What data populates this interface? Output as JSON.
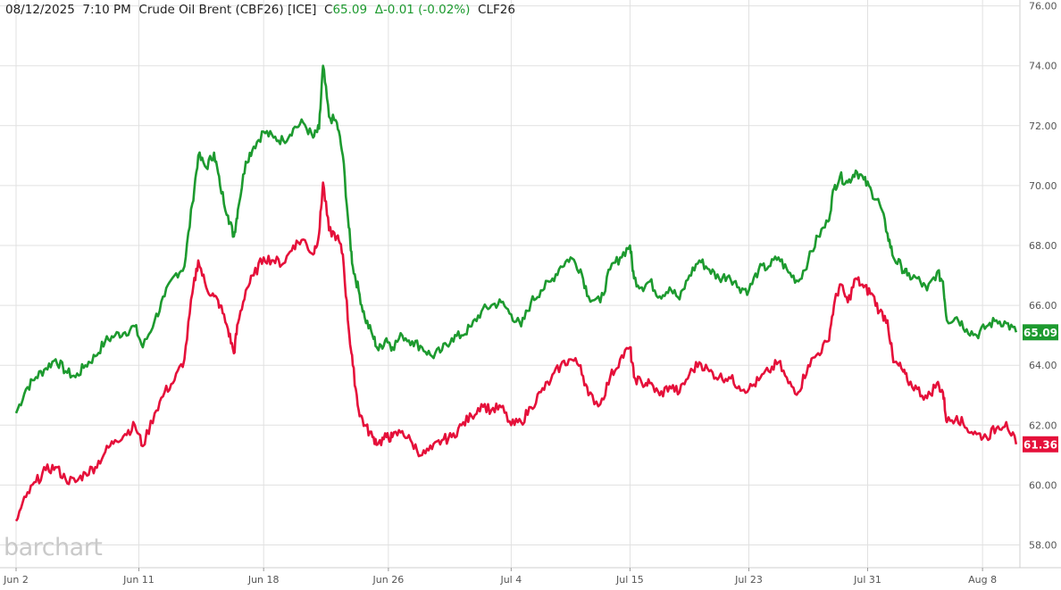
{
  "header": {
    "date": "08/12/2025",
    "time": "7:10 PM",
    "instrument": "Crude Oil Brent (CBF26) [ICE]",
    "close_label": "C",
    "close_value": "65.09",
    "change": "Δ-0.01 (-0.02%)",
    "second_symbol": "CLF26"
  },
  "logo_text": "barchart",
  "colors": {
    "series_a": "#1d9a2f",
    "series_b": "#e5103a",
    "grid": "#e1e1e1"
  },
  "chart_data": {
    "type": "line",
    "grid": true,
    "ylim": [
      57.5,
      76.2
    ],
    "xlim": [
      0,
      51.5
    ],
    "y_ticks": [
      "76.00",
      "74.00",
      "72.00",
      "70.00",
      "68.00",
      "66.00",
      "64.00",
      "62.00",
      "60.00",
      "58.00"
    ],
    "x_ticks": [
      {
        "label": "Jun 2",
        "x": 0
      },
      {
        "label": "Jun 11",
        "x": 6.2
      },
      {
        "label": "Jun 18",
        "x": 12.5
      },
      {
        "label": "Jun 26",
        "x": 18.8
      },
      {
        "label": "Jul 4",
        "x": 25
      },
      {
        "label": "Jul 15",
        "x": 31
      },
      {
        "label": "Jul 23",
        "x": 37
      },
      {
        "label": "Jul 31",
        "x": 43
      },
      {
        "label": "Aug 8",
        "x": 48.8
      }
    ],
    "series": [
      {
        "symbol": "CBF26",
        "last_label": "65.09",
        "points": [
          [
            0,
            62.4
          ],
          [
            0.5,
            63.2
          ],
          [
            1,
            63.6
          ],
          [
            1.5,
            63.9
          ],
          [
            2,
            64.2
          ],
          [
            2.5,
            63.8
          ],
          [
            3,
            63.6
          ],
          [
            3.5,
            64.0
          ],
          [
            4,
            64.3
          ],
          [
            4.5,
            64.8
          ],
          [
            5,
            65.0
          ],
          [
            5.5,
            65.1
          ],
          [
            6,
            65.3
          ],
          [
            6.4,
            64.6
          ],
          [
            7,
            65.5
          ],
          [
            7.5,
            66.3
          ],
          [
            8,
            67.0
          ],
          [
            8.5,
            67.3
          ],
          [
            8.9,
            69.4
          ],
          [
            9.2,
            71.0
          ],
          [
            9.6,
            70.6
          ],
          [
            10,
            71.1
          ],
          [
            10.3,
            70.0
          ],
          [
            10.7,
            69.0
          ],
          [
            11,
            68.3
          ],
          [
            11.2,
            69.2
          ],
          [
            11.6,
            70.8
          ],
          [
            12,
            71.3
          ],
          [
            12.5,
            71.8
          ],
          [
            13,
            71.6
          ],
          [
            13.5,
            71.5
          ],
          [
            14,
            71.9
          ],
          [
            14.5,
            72.1
          ],
          [
            15,
            71.6
          ],
          [
            15.3,
            71.9
          ],
          [
            15.5,
            74.0
          ],
          [
            15.8,
            72.3
          ],
          [
            16.2,
            72.1
          ],
          [
            16.5,
            71.0
          ],
          [
            16.8,
            68.6
          ],
          [
            17,
            67.3
          ],
          [
            17.3,
            66.5
          ],
          [
            17.6,
            65.6
          ],
          [
            18,
            65.0
          ],
          [
            18.3,
            64.5
          ],
          [
            18.7,
            64.9
          ],
          [
            19,
            64.6
          ],
          [
            19.5,
            65.0
          ],
          [
            20,
            64.8
          ],
          [
            20.5,
            64.6
          ],
          [
            21,
            64.3
          ],
          [
            21.5,
            64.5
          ],
          [
            22,
            64.9
          ],
          [
            22.5,
            65.0
          ],
          [
            23,
            65.3
          ],
          [
            23.5,
            65.8
          ],
          [
            24,
            66.0
          ],
          [
            24.5,
            66.1
          ],
          [
            25,
            65.7
          ],
          [
            25.5,
            65.3
          ],
          [
            26,
            66.1
          ],
          [
            26.5,
            66.5
          ],
          [
            27,
            66.8
          ],
          [
            27.5,
            67.3
          ],
          [
            28,
            67.6
          ],
          [
            28.5,
            67.2
          ],
          [
            28.9,
            66.3
          ],
          [
            29.5,
            66.1
          ],
          [
            30,
            67.2
          ],
          [
            30.5,
            67.6
          ],
          [
            31,
            68.0
          ],
          [
            31.2,
            66.9
          ],
          [
            31.6,
            66.6
          ],
          [
            32,
            66.8
          ],
          [
            32.5,
            66.3
          ],
          [
            33,
            66.6
          ],
          [
            33.5,
            66.2
          ],
          [
            34,
            67.0
          ],
          [
            34.5,
            67.5
          ],
          [
            35,
            67.2
          ],
          [
            35.5,
            66.9
          ],
          [
            36,
            67.0
          ],
          [
            36.5,
            66.6
          ],
          [
            37,
            66.5
          ],
          [
            37.5,
            67.2
          ],
          [
            38,
            67.3
          ],
          [
            38.5,
            67.6
          ],
          [
            39,
            67.1
          ],
          [
            39.5,
            66.8
          ],
          [
            40,
            67.5
          ],
          [
            40.5,
            68.3
          ],
          [
            41,
            68.8
          ],
          [
            41.3,
            69.9
          ],
          [
            41.6,
            70.3
          ],
          [
            42,
            70.1
          ],
          [
            42.4,
            70.5
          ],
          [
            42.8,
            70.2
          ],
          [
            43.2,
            69.8
          ],
          [
            43.6,
            69.4
          ],
          [
            44,
            68.4
          ],
          [
            44.3,
            67.6
          ],
          [
            44.7,
            67.3
          ],
          [
            45,
            67.0
          ],
          [
            45.5,
            66.9
          ],
          [
            46,
            66.5
          ],
          [
            46.5,
            67.1
          ],
          [
            46.8,
            66.8
          ],
          [
            47,
            65.5
          ],
          [
            47.5,
            65.6
          ],
          [
            48,
            65.2
          ],
          [
            48.5,
            65.0
          ],
          [
            49,
            65.3
          ],
          [
            49.5,
            65.5
          ],
          [
            50,
            65.4
          ],
          [
            50.5,
            65.1
          ]
        ]
      },
      {
        "symbol": "CLF26",
        "last_label": "61.36",
        "points": [
          [
            0,
            58.8
          ],
          [
            0.5,
            59.6
          ],
          [
            1,
            60.1
          ],
          [
            1.5,
            60.5
          ],
          [
            2,
            60.6
          ],
          [
            2.5,
            60.2
          ],
          [
            3,
            60.1
          ],
          [
            3.5,
            60.4
          ],
          [
            4,
            60.6
          ],
          [
            4.5,
            61.1
          ],
          [
            5,
            61.5
          ],
          [
            5.5,
            61.7
          ],
          [
            6,
            62.0
          ],
          [
            6.4,
            61.3
          ],
          [
            7,
            62.4
          ],
          [
            7.5,
            63.1
          ],
          [
            8,
            63.5
          ],
          [
            8.5,
            64.2
          ],
          [
            8.9,
            66.4
          ],
          [
            9.2,
            67.5
          ],
          [
            9.6,
            66.6
          ],
          [
            10,
            66.3
          ],
          [
            10.3,
            66.0
          ],
          [
            10.7,
            65.2
          ],
          [
            11,
            64.4
          ],
          [
            11.2,
            65.4
          ],
          [
            11.6,
            66.5
          ],
          [
            12,
            67.0
          ],
          [
            12.5,
            67.6
          ],
          [
            13,
            67.5
          ],
          [
            13.5,
            67.4
          ],
          [
            14,
            68.0
          ],
          [
            14.5,
            68.2
          ],
          [
            15,
            67.7
          ],
          [
            15.3,
            68.4
          ],
          [
            15.5,
            70.1
          ],
          [
            15.8,
            68.5
          ],
          [
            16.2,
            68.3
          ],
          [
            16.5,
            67.7
          ],
          [
            16.8,
            65.2
          ],
          [
            17,
            64.0
          ],
          [
            17.3,
            62.5
          ],
          [
            17.6,
            62.0
          ],
          [
            18,
            61.6
          ],
          [
            18.3,
            61.4
          ],
          [
            18.7,
            61.6
          ],
          [
            19,
            61.6
          ],
          [
            19.5,
            61.8
          ],
          [
            20,
            61.4
          ],
          [
            20.5,
            61.0
          ],
          [
            21,
            61.2
          ],
          [
            21.5,
            61.5
          ],
          [
            22,
            61.6
          ],
          [
            22.5,
            62.0
          ],
          [
            23,
            62.3
          ],
          [
            23.5,
            62.7
          ],
          [
            24,
            62.5
          ],
          [
            24.5,
            62.6
          ],
          [
            25,
            62.0
          ],
          [
            25.5,
            62.1
          ],
          [
            26,
            62.6
          ],
          [
            26.5,
            63.1
          ],
          [
            27,
            63.5
          ],
          [
            27.5,
            64.0
          ],
          [
            28,
            64.2
          ],
          [
            28.5,
            64.0
          ],
          [
            28.9,
            63.0
          ],
          [
            29.5,
            62.7
          ],
          [
            30,
            63.6
          ],
          [
            30.5,
            64.2
          ],
          [
            31,
            64.6
          ],
          [
            31.2,
            63.6
          ],
          [
            31.6,
            63.4
          ],
          [
            32,
            63.4
          ],
          [
            32.5,
            63.0
          ],
          [
            33,
            63.3
          ],
          [
            33.5,
            63.1
          ],
          [
            34,
            63.7
          ],
          [
            34.5,
            64.1
          ],
          [
            35,
            63.8
          ],
          [
            35.5,
            63.6
          ],
          [
            36,
            63.6
          ],
          [
            36.5,
            63.3
          ],
          [
            37,
            63.2
          ],
          [
            37.5,
            63.5
          ],
          [
            38,
            63.8
          ],
          [
            38.5,
            64.1
          ],
          [
            39,
            63.4
          ],
          [
            39.5,
            63.1
          ],
          [
            40,
            64.0
          ],
          [
            40.5,
            64.4
          ],
          [
            41,
            64.8
          ],
          [
            41.3,
            66.0
          ],
          [
            41.6,
            66.7
          ],
          [
            42,
            66.1
          ],
          [
            42.4,
            66.9
          ],
          [
            42.8,
            66.6
          ],
          [
            43.2,
            66.4
          ],
          [
            43.6,
            65.8
          ],
          [
            44,
            65.5
          ],
          [
            44.3,
            64.1
          ],
          [
            44.7,
            63.9
          ],
          [
            45,
            63.5
          ],
          [
            45.5,
            63.2
          ],
          [
            46,
            62.9
          ],
          [
            46.5,
            63.4
          ],
          [
            46.8,
            63.1
          ],
          [
            47,
            62.1
          ],
          [
            47.5,
            62.3
          ],
          [
            48,
            61.9
          ],
          [
            48.5,
            61.7
          ],
          [
            49,
            61.6
          ],
          [
            49.5,
            61.9
          ],
          [
            50,
            62.1
          ],
          [
            50.5,
            61.36
          ]
        ]
      }
    ]
  }
}
